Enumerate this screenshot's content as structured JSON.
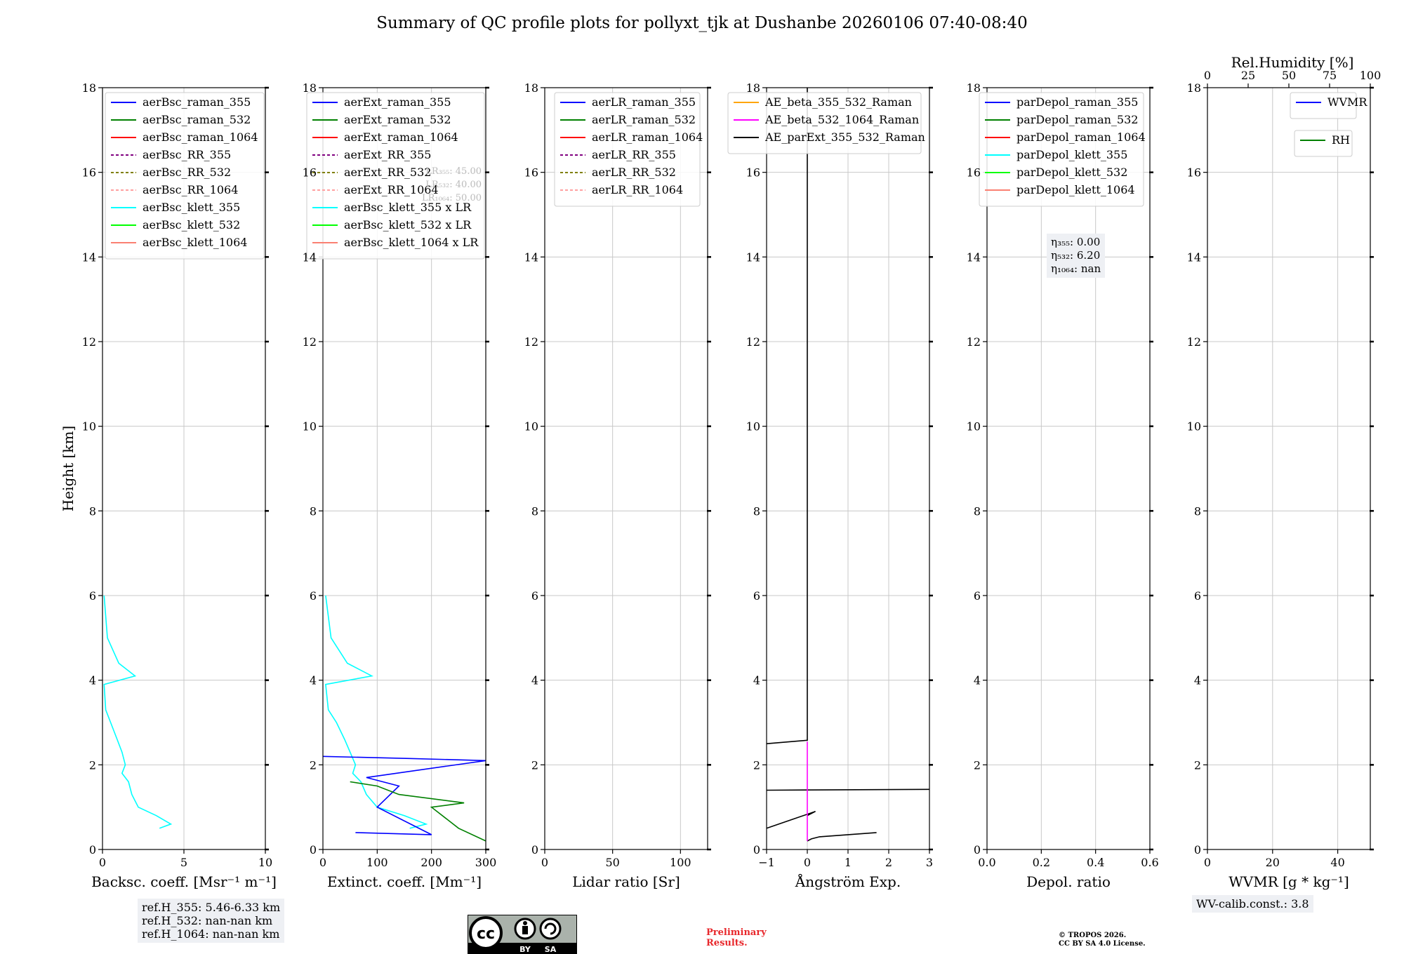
{
  "title": "Summary of QC profile plots for pollyxt_tjk at Dushanbe 20260106 07:40-08:40",
  "colors": {
    "blue": "#0000ff",
    "green": "#008000",
    "red": "#ff0000",
    "purple": "#800080",
    "olive": "#808000",
    "pink": "#ffa0a0",
    "cyan": "#00ffff",
    "lime": "#00ff00",
    "salmon": "#fa8072",
    "orange": "#ffa500",
    "magenta": "#ff00ff",
    "black": "#000000"
  },
  "chart_data": [
    {
      "type": "line",
      "xlabel": "Backsc. coeff. [Msr⁻¹ m⁻¹]",
      "ylabel": "Height [km]",
      "xlim": [
        0,
        10
      ],
      "ylim": [
        0,
        18
      ],
      "xticks": [
        "0",
        "5",
        "10"
      ],
      "yticks": [
        "0",
        "2",
        "4",
        "6",
        "8",
        "10",
        "12",
        "14",
        "16",
        "18"
      ],
      "legend": [
        "aerBsc_raman_355",
        "aerBsc_raman_532",
        "aerBsc_raman_1064",
        "aerBsc_RR_355",
        "aerBsc_RR_532",
        "aerBsc_RR_1064",
        "aerBsc_klett_355",
        "aerBsc_klett_532",
        "aerBsc_klett_1064"
      ],
      "series": [
        {
          "name": "aerBsc_klett_355",
          "color": "cyan",
          "points": [
            [
              3.5,
              0.5
            ],
            [
              4.2,
              0.6
            ],
            [
              3.3,
              0.8
            ],
            [
              2.2,
              1.0
            ],
            [
              1.8,
              1.3
            ],
            [
              1.6,
              1.6
            ],
            [
              1.2,
              1.8
            ],
            [
              1.4,
              2.0
            ],
            [
              1.2,
              2.3
            ],
            [
              0.9,
              2.6
            ],
            [
              0.5,
              3.0
            ],
            [
              0.2,
              3.3
            ],
            [
              0.1,
              3.9
            ],
            [
              2.0,
              4.1
            ],
            [
              1.0,
              4.4
            ],
            [
              0.3,
              5.0
            ],
            [
              0.1,
              6.0
            ]
          ]
        }
      ],
      "annotation": [
        "ref.H_355: 5.46-6.33 km",
        "ref.H_532: nan-nan km",
        "ref.H_1064: nan-nan km"
      ]
    },
    {
      "type": "line",
      "xlabel": "Extinct. coeff. [Mm⁻¹]",
      "xlim": [
        0,
        300
      ],
      "ylim": [
        0,
        18
      ],
      "xticks": [
        "0",
        "100",
        "200",
        "300"
      ],
      "yticks": [
        "0",
        "2",
        "4",
        "6",
        "8",
        "10",
        "12",
        "14",
        "16",
        "18"
      ],
      "legend": [
        "aerExt_raman_355",
        "aerExt_raman_532",
        "aerExt_raman_1064",
        "aerExt_RR_355",
        "aerExt_RR_532",
        "aerExt_RR_1064",
        "aerBsc_klett_355 x LR",
        "aerBsc_klett_532 x LR",
        "aerBsc_klett_1064 x LR"
      ],
      "hidden_labels": [
        "LR₃₅₅: 45.00",
        "LR₅₃₂: 40.00",
        "LR₁₀₆₄: 50.00"
      ],
      "series": [
        {
          "name": "aerBsc_klett_355 x LR",
          "color": "cyan",
          "points": [
            [
              160,
              0.5
            ],
            [
              190,
              0.6
            ],
            [
              150,
              0.8
            ],
            [
              100,
              1.0
            ],
            [
              80,
              1.3
            ],
            [
              70,
              1.6
            ],
            [
              55,
              1.8
            ],
            [
              60,
              2.0
            ],
            [
              50,
              2.3
            ],
            [
              40,
              2.6
            ],
            [
              25,
              3.0
            ],
            [
              10,
              3.3
            ],
            [
              5,
              3.9
            ],
            [
              90,
              4.1
            ],
            [
              45,
              4.4
            ],
            [
              15,
              5.0
            ],
            [
              5,
              6.0
            ]
          ]
        },
        {
          "name": "aerExt_raman_355",
          "color": "blue",
          "points": [
            [
              60,
              0.4
            ],
            [
              200,
              0.35
            ],
            [
              100,
              1.0
            ],
            [
              140,
              1.5
            ],
            [
              80,
              1.7
            ],
            [
              300,
              2.1
            ],
            [
              160,
              2.15
            ],
            [
              0,
              2.2
            ]
          ]
        },
        {
          "name": "aerExt_raman_532",
          "color": "green",
          "points": [
            [
              300,
              0.2
            ],
            [
              250,
              0.5
            ],
            [
              200,
              1.0
            ],
            [
              260,
              1.1
            ],
            [
              140,
              1.3
            ],
            [
              100,
              1.5
            ],
            [
              50,
              1.6
            ]
          ]
        }
      ]
    },
    {
      "type": "line",
      "xlabel": "Lidar ratio [Sr]",
      "xlim": [
        0,
        120
      ],
      "ylim": [
        0,
        18
      ],
      "xticks": [
        "0",
        "50",
        "100"
      ],
      "yticks": [
        "0",
        "2",
        "4",
        "6",
        "8",
        "10",
        "12",
        "14",
        "16",
        "18"
      ],
      "legend": [
        "aerLR_raman_355",
        "aerLR_raman_532",
        "aerLR_raman_1064",
        "aerLR_RR_355",
        "aerLR_RR_532",
        "aerLR_RR_1064"
      ],
      "series": []
    },
    {
      "type": "line",
      "xlabel": "Ångström Exp.",
      "xlim": [
        -1,
        3
      ],
      "ylim": [
        0,
        18
      ],
      "xticks": [
        "−1",
        "0",
        "1",
        "2",
        "3"
      ],
      "yticks": [
        "0",
        "2",
        "4",
        "6",
        "8",
        "10",
        "12",
        "14",
        "16",
        "18"
      ],
      "legend": [
        "AE_beta_355_532_Raman",
        "AE_beta_532_1064_Raman",
        "AE_parExt_355_532_Raman"
      ],
      "series": [
        {
          "name": "AE_parExt_355_532_Raman",
          "color": "black",
          "points": [
            [
              1.7,
              0.4
            ],
            [
              0.3,
              0.3
            ],
            [
              0.1,
              0.25
            ],
            [
              0,
              0.2
            ]
          ]
        },
        {
          "name": "AE_parExt_355_532_Raman (lower)",
          "color": "black",
          "points": [
            [
              0,
              0.8
            ],
            [
              0.2,
              0.9
            ],
            [
              -0.4,
              0.7
            ],
            [
              -1,
              0.5
            ]
          ]
        },
        {
          "name": "AE_parExt_355_532_Raman (mid)",
          "color": "black",
          "points": [
            [
              -1,
              1.4
            ],
            [
              3,
              1.42
            ]
          ]
        },
        {
          "name": "AE_parExt_355_532_Raman (upper)",
          "color": "black",
          "points": [
            [
              -1,
              2.5
            ],
            [
              0,
              2.58
            ],
            [
              0,
              18
            ]
          ]
        },
        {
          "name": "AE_beta_532_1064_Raman",
          "color": "magenta",
          "points": [
            [
              0,
              0.2
            ],
            [
              0,
              2.55
            ]
          ]
        }
      ]
    },
    {
      "type": "line",
      "xlabel": "Depol. ratio",
      "xlim": [
        0,
        0.6
      ],
      "ylim": [
        0,
        18
      ],
      "xticks": [
        "0.0",
        "0.2",
        "0.4",
        "0.6"
      ],
      "yticks": [
        "0",
        "2",
        "4",
        "6",
        "8",
        "10",
        "12",
        "14",
        "16",
        "18"
      ],
      "legend": [
        "parDepol_raman_355",
        "parDepol_raman_532",
        "parDepol_raman_1064",
        "parDepol_klett_355",
        "parDepol_klett_532",
        "parDepol_klett_1064"
      ],
      "annotation": [
        "η₃₅₅: 0.00",
        "η₅₃₂: 6.20",
        "η₁₀₆₄: nan"
      ],
      "series": []
    },
    {
      "type": "line",
      "xlabel": "WVMR [g * kg⁻¹]",
      "xlim": [
        0,
        50
      ],
      "ylim": [
        0,
        18
      ],
      "xticks": [
        "0",
        "20",
        "40"
      ],
      "yticks": [
        "0",
        "2",
        "4",
        "6",
        "8",
        "10",
        "12",
        "14",
        "16",
        "18"
      ],
      "top_axis": {
        "label": "Rel.Humidity [%]",
        "range": [
          0,
          100
        ],
        "ticks": [
          "0",
          "25",
          "50",
          "75",
          "100"
        ]
      },
      "legend": [
        "WVMR"
      ],
      "legend2": [
        "RH"
      ],
      "annotation": [
        "WV-calib.const.: 3.8"
      ],
      "series": []
    }
  ],
  "footer": {
    "cc_labels": [
      "BY",
      "SA"
    ],
    "preliminary": [
      "Preliminary",
      "Results."
    ],
    "copyright": [
      "© TROPOS 2026.",
      "CC BY SA 4.0 License."
    ]
  }
}
